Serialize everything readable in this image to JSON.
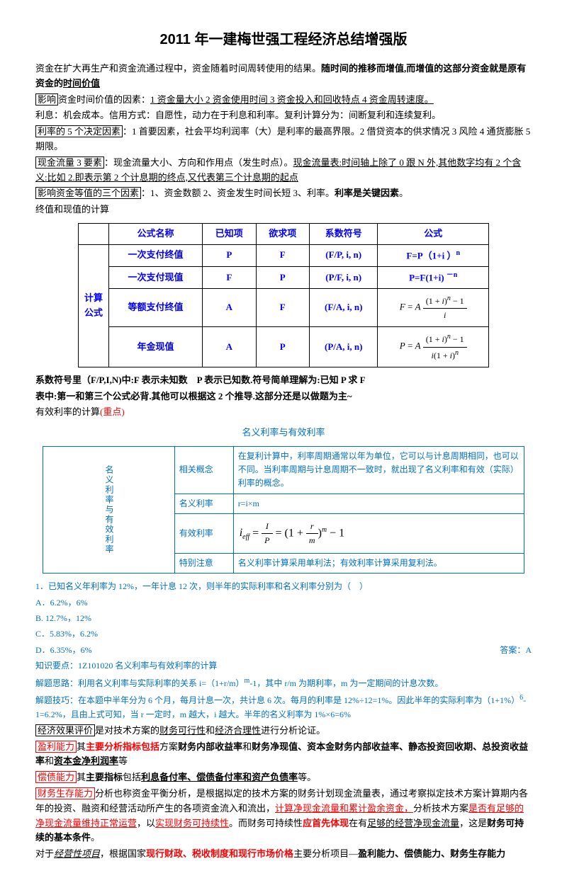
{
  "title": "2011 年一建梅世强工程经济总结增强版",
  "para1_a": "资金在扩大再生产和资金流通过程中，资金随着时间周转使用的结果。",
  "para1_b": "随时间的推移而增值,而增值的这部分资金就是原有资金的",
  "para1_c": "时间价值",
  "para2_box": "影响",
  "para2_a": "资金时间价值的因素：",
  "para2_b": "1 资金量大小 2 资金使用时间 3 资金投入和回收特点 4 资金周转速度。",
  "para3": "利息：机会成本。信用方式：自愿性，动力在于利息和利率。复利计算分为：间断复利和连续复利。",
  "para4_box": "利率的 5 个决定因素",
  "para4_a": "：1 首要因素，社会平均利润率（大）是利率的最高界限。2 借贷资本的供求情况 3 风险 4 通货膨胀 5 期限。",
  "para5_box": "现金流量 3 要素",
  "para5_a": "：现金流量大小、方向和作用点（发生时点）。",
  "para5_b": "现金流量表:时间轴上除了 0 跟 N 外,其他数字均有 2 个含义:比如 2.即表示第 2 个计息期的终点,又代表第三个计息期的起点",
  "para6_box": "影响资金等值的三个因素",
  "para6_a": "：1、资金数额 2、资金发生时间长短 3、利率。",
  "para6_b": "利率是关键因素",
  "para6_c": "。",
  "para7": "终值和现值的计算",
  "t1_header": [
    "公式名称",
    "已知项",
    "欲求项",
    "系数符号",
    "公式"
  ],
  "t1_rowlabel": "计算公式",
  "t1_rows": [
    {
      "name": "一次支付终值",
      "known": "P",
      "want": "F",
      "coef": "(F/P, i, n)",
      "formula_html": "F=P（1+i ）<span class='sup'>n</span>"
    },
    {
      "name": "一次支付现值",
      "known": "F",
      "want": "P",
      "coef": "(P/F, i, n)",
      "formula_html": "P=F(1+i) <span class='sup'>－n</span>"
    },
    {
      "name": "等额支付终值",
      "known": "A",
      "want": "F",
      "coef": "(F/A, i, n)",
      "formula_html": "<i>F</i> = <i>A</i> <span class='frac'><span class='num'>(1 + <i>i</i>)<span class=\"sup\"><i>n</i></span> − 1</span><span class='den'><i>i</i></span></span>"
    },
    {
      "name": "年金现值",
      "known": "A",
      "want": "P",
      "coef": "(P/A, i, n)",
      "formula_html": "<i>P</i> = <i>A</i> <span class='frac'><span class='num'>(1 + <i>i</i>)<span class=\"sup\"><i>n</i></span> − 1</span><span class='den'><i>i</i>(1 + <i>i</i>)<span class=\"sup\"><i>n</i></span></span></span>"
    }
  ],
  "note1": "系数符号里（F/P,I,N)中:F 表示未知数　P 表示已知数.符号简单理解为:已知 P 求 F",
  "note2": "表中:第一和第三个公式必背.其他可以根据这 2 个推导.这部分还是以做题为主~",
  "note3_a": "有效利率的计算",
  "note3_b": "(重点)",
  "caption2": "名义利率与有效利率",
  "t2_vlabel": "名义利率与有效利率",
  "t2_rows": [
    {
      "label": "相关概念",
      "content": "在复利计算中，利率周期通常以年为单位，它可以与计息周期相同，也可以不同。当利率周期与计息周期不一致时，就出现了名义利率和有效（实际）利率的概念。"
    },
    {
      "label": "名义利率",
      "content": "r=i×m"
    },
    {
      "label": "有效利率",
      "content_html": "<i>i<span class='sub'>eff</span></i> = <span class='frac'><span class='num'><i>I</i></span><span class='den'><i>P</i></span></span> = (1 + <span class='frac'><span class='num'><i>r</i></span><span class='den'><i>m</i></span></span>)<span class='sup'><i>m</i></span> − 1"
    },
    {
      "label": "特别注意",
      "content": "名义利率计算采用单利法；有效利率计算采用复利法。"
    }
  ],
  "q1": "1．已知名义年利率为 12%，一年计息 12 次，则半年的实际利率和名义利率分别为（　）",
  "qA": "A．6.2%，6%",
  "qB": "B. 12.7%，12%",
  "qC": "C．5.83%，6.2%",
  "qD": "D．6.35%，6%",
  "ans": "答案：A",
  "kp": "知识要点：1Z101020 名义利率与有效利率的计算",
  "sl1": "解题思路：利用名义利率与实际利率的关系 i=（1+r/m）",
  "sl1b": "-1，其中 r/m 为期利率，m 为一定期间的计息次数。",
  "sl2a": "解题技巧：在本题中半年分为 6 个月，每月计息一次，共计息 6 次。每月的利率是 12%÷12=1%。因此半年的实际利率为（1+1%）",
  "sl2b": "-1=6.2%，且由上式可知，当 r 一定时，m 越大，i 越大。半年的名义利率为 1%×6=6%",
  "e1_box": "经济效果评价",
  "e1_a": "是对技术方案的",
  "e1_b": "财务可行性",
  "e1_c": "和",
  "e1_d": "经济合理性",
  "e1_e": "进行分析论证。",
  "e2_box": "盈利能力",
  "e2_a": "其",
  "e2_b": "主要分析指标包括",
  "e2_c": "方案",
  "e2_d": "财务内部收益率",
  "e2_e": "和",
  "e2_f": "财务净现值、资本金财务内部收益率、静态投资回收期、总投资收益率",
  "e2_g": "和",
  "e2_h": "资本金净利润率",
  "e2_i": "等",
  "e3_box": "偿债能力",
  "e3_a": "其",
  "e3_b": "主要指标",
  "e3_c": "包括",
  "e3_d": "利息备付率、偿债备付率和资产负债率",
  "e3_e": "等。",
  "e4_box": "财务生存能力",
  "e4_a": "分析也称资金平衡分析，是根据拟定的技术方案的财务计划现金流量表，通过考察拟定技术方案计算期内各年的投资、融资和经营活动所产生的各项资金流入和流出，",
  "e4_b": "计算净现金流量和累计盈余资金，",
  "e4_c": "分析技术方案",
  "e4_d": "是否有足够的净现金流量维持正常运营",
  "e4_e": "，以",
  "e4_f": "实现财务可持续性",
  "e4_g": "。而财务可持续性",
  "e4_h": "应首先体现",
  "e4_i": "在有",
  "e4_j": "足够的经营净现金流量",
  "e4_k": "，这是",
  "e4_l": "财务可持续的基本条件",
  "e4_m": "。",
  "e5_a": "对于",
  "e5_b": "经营性项目",
  "e5_c": "，根据国家",
  "e5_d": "现行财政、税收制度和现行市场价格",
  "e5_e": "主要分析项目—",
  "e5_f": "盈利能力、偿债能力、财务生存能力"
}
